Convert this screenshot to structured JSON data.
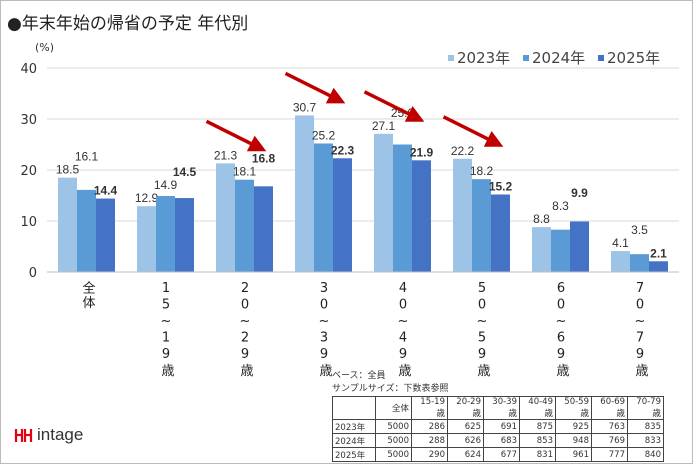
{
  "title": "●年末年始の帰省の予定 年代別",
  "chart_data": {
    "type": "bar",
    "ylabel": "(%)",
    "ylim": [
      0,
      40
    ],
    "yticks": [
      0,
      10,
      20,
      30,
      40
    ],
    "grid": true,
    "legend_position": "top-right",
    "categories": [
      "全体",
      "15~19歳",
      "20~29歳",
      "30~39歳",
      "40~49歳",
      "50~59歳",
      "60~69歳",
      "70~79歳"
    ],
    "series": [
      {
        "name": "2023年",
        "color": "#9dc3e6",
        "values": [
          18.5,
          12.9,
          21.3,
          30.7,
          27.1,
          22.2,
          8.8,
          4.1
        ]
      },
      {
        "name": "2024年",
        "color": "#5b9bd5",
        "values": [
          16.1,
          14.9,
          18.1,
          25.2,
          25.0,
          18.2,
          8.3,
          3.5
        ]
      },
      {
        "name": "2025年",
        "color": "#4472c4",
        "values": [
          14.4,
          14.5,
          16.8,
          22.3,
          21.9,
          15.2,
          9.9,
          2.1
        ]
      }
    ],
    "arrow_color": "#c00000",
    "arrows_on": [
      "20~29歳",
      "30~39歳",
      "40~49歳",
      "50~59歳"
    ]
  },
  "notes": {
    "base": "ベース：全員",
    "sample": "サンプルサイズ：下数表参照"
  },
  "sample_table": {
    "headers": [
      "",
      "全体",
      "15-19歳",
      "20-29歳",
      "30-39歳",
      "40-49歳",
      "50-59歳",
      "60-69歳",
      "70-79歳"
    ],
    "rows": [
      [
        "2023年",
        "5000",
        "286",
        "625",
        "691",
        "875",
        "925",
        "763",
        "835"
      ],
      [
        "2024年",
        "5000",
        "288",
        "626",
        "683",
        "853",
        "948",
        "769",
        "833"
      ],
      [
        "2025年",
        "5000",
        "290",
        "624",
        "677",
        "831",
        "961",
        "777",
        "840"
      ]
    ]
  },
  "logo": {
    "text": "intage",
    "color": "#e60012"
  }
}
